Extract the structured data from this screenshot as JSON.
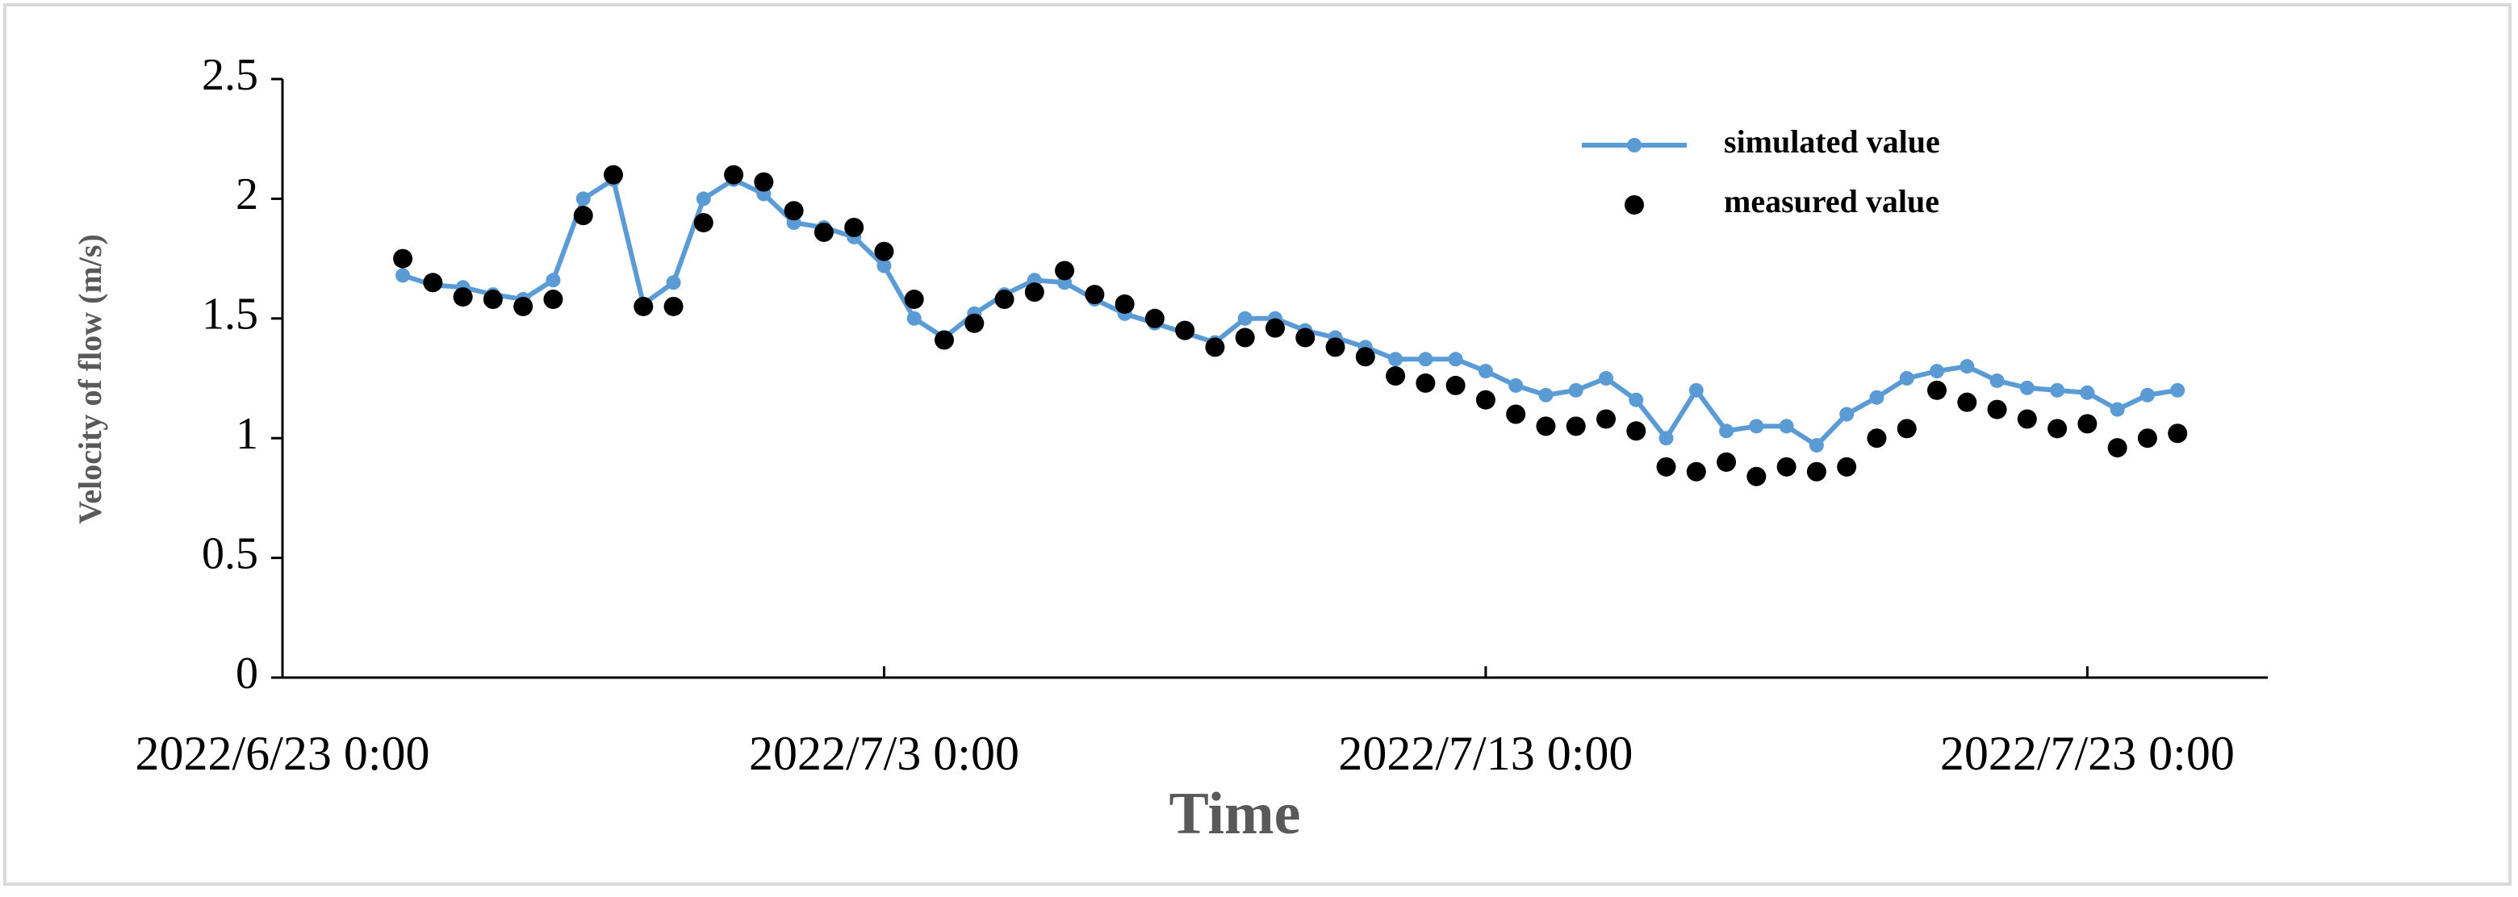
{
  "chart_data": {
    "type": "line",
    "x_label": "Time",
    "y_label": "Velocity of flow (m/s)",
    "x": [
      "2022/6/25 0:00",
      "2022/6/25 12:00",
      "2022/6/26 0:00",
      "2022/6/26 12:00",
      "2022/6/27 0:00",
      "2022/6/27 12:00",
      "2022/6/28 0:00",
      "2022/6/28 12:00",
      "2022/6/29 0:00",
      "2022/6/29 12:00",
      "2022/6/30 0:00",
      "2022/6/30 12:00",
      "2022/7/1 0:00",
      "2022/7/1 12:00",
      "2022/7/2 0:00",
      "2022/7/2 12:00",
      "2022/7/3 0:00",
      "2022/7/3 12:00",
      "2022/7/4 0:00",
      "2022/7/4 12:00",
      "2022/7/5 0:00",
      "2022/7/5 12:00",
      "2022/7/6 0:00",
      "2022/7/6 12:00",
      "2022/7/7 0:00",
      "2022/7/7 12:00",
      "2022/7/8 0:00",
      "2022/7/8 12:00",
      "2022/7/9 0:00",
      "2022/7/9 12:00",
      "2022/7/10 0:00",
      "2022/7/10 12:00",
      "2022/7/11 0:00",
      "2022/7/11 12:00",
      "2022/7/12 0:00",
      "2022/7/12 12:00",
      "2022/7/13 0:00",
      "2022/7/13 12:00",
      "2022/7/14 0:00",
      "2022/7/14 12:00",
      "2022/7/15 0:00",
      "2022/7/15 12:00",
      "2022/7/16 0:00",
      "2022/7/16 12:00",
      "2022/7/17 0:00",
      "2022/7/17 12:00",
      "2022/7/18 0:00",
      "2022/7/18 12:00",
      "2022/7/19 0:00",
      "2022/7/19 12:00",
      "2022/7/20 0:00",
      "2022/7/20 12:00",
      "2022/7/21 0:00",
      "2022/7/21 12:00",
      "2022/7/22 0:00",
      "2022/7/22 12:00",
      "2022/7/23 0:00",
      "2022/7/23 12:00",
      "2022/7/24 0:00",
      "2022/7/24 12:00"
    ],
    "series": [
      {
        "name": "simulated value",
        "type": "line",
        "color": "#5b9bd5",
        "values": [
          1.68,
          1.64,
          1.63,
          1.6,
          1.58,
          1.66,
          2.0,
          2.08,
          1.56,
          1.65,
          2.0,
          2.08,
          2.02,
          1.9,
          1.88,
          1.84,
          1.72,
          1.5,
          1.42,
          1.52,
          1.6,
          1.66,
          1.65,
          1.58,
          1.52,
          1.48,
          1.44,
          1.4,
          1.5,
          1.5,
          1.45,
          1.42,
          1.38,
          1.33,
          1.33,
          1.33,
          1.28,
          1.22,
          1.18,
          1.2,
          1.25,
          1.16,
          1.0,
          1.2,
          1.03,
          1.05,
          1.05,
          0.97,
          1.1,
          1.17,
          1.25,
          1.28,
          1.3,
          1.24,
          1.21,
          1.2,
          1.19,
          1.12,
          1.18,
          1.2
        ]
      },
      {
        "name": "measured value",
        "type": "scatter",
        "color": "#000000",
        "values": [
          1.75,
          1.65,
          1.59,
          1.58,
          1.55,
          1.58,
          1.93,
          2.1,
          1.55,
          1.55,
          1.9,
          2.1,
          2.07,
          1.95,
          1.86,
          1.88,
          1.78,
          1.58,
          1.41,
          1.48,
          1.58,
          1.61,
          1.7,
          1.6,
          1.56,
          1.5,
          1.45,
          1.38,
          1.42,
          1.46,
          1.42,
          1.38,
          1.34,
          1.26,
          1.23,
          1.22,
          1.16,
          1.1,
          1.05,
          1.05,
          1.08,
          1.03,
          0.88,
          0.86,
          0.9,
          0.84,
          0.88,
          0.86,
          0.88,
          1.0,
          1.04,
          1.2,
          1.15,
          1.12,
          1.08,
          1.04,
          1.06,
          0.96,
          1.0,
          1.02
        ]
      }
    ],
    "xlim": [
      "2022/6/23 0:00",
      "2022/7/26 0:00"
    ],
    "xticks": [
      "2022/6/23 0:00",
      "2022/7/3 0:00",
      "2022/7/13 0:00",
      "2022/7/23 0:00"
    ],
    "ylim": [
      0,
      2.5
    ],
    "yticks": [
      0,
      0.5,
      1,
      1.5,
      2,
      2.5
    ],
    "legend": "upper right",
    "grid": false
  }
}
